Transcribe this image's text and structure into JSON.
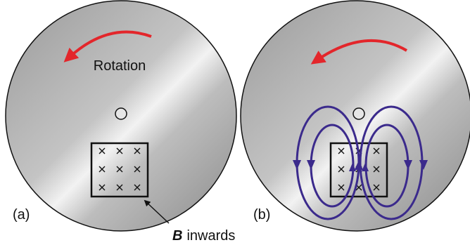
{
  "panels": [
    {
      "label": "(a)",
      "rotation_label": "Rotation",
      "field_label": {
        "symbol": "B",
        "text": "inwards"
      }
    },
    {
      "label": "(b)"
    }
  ]
}
